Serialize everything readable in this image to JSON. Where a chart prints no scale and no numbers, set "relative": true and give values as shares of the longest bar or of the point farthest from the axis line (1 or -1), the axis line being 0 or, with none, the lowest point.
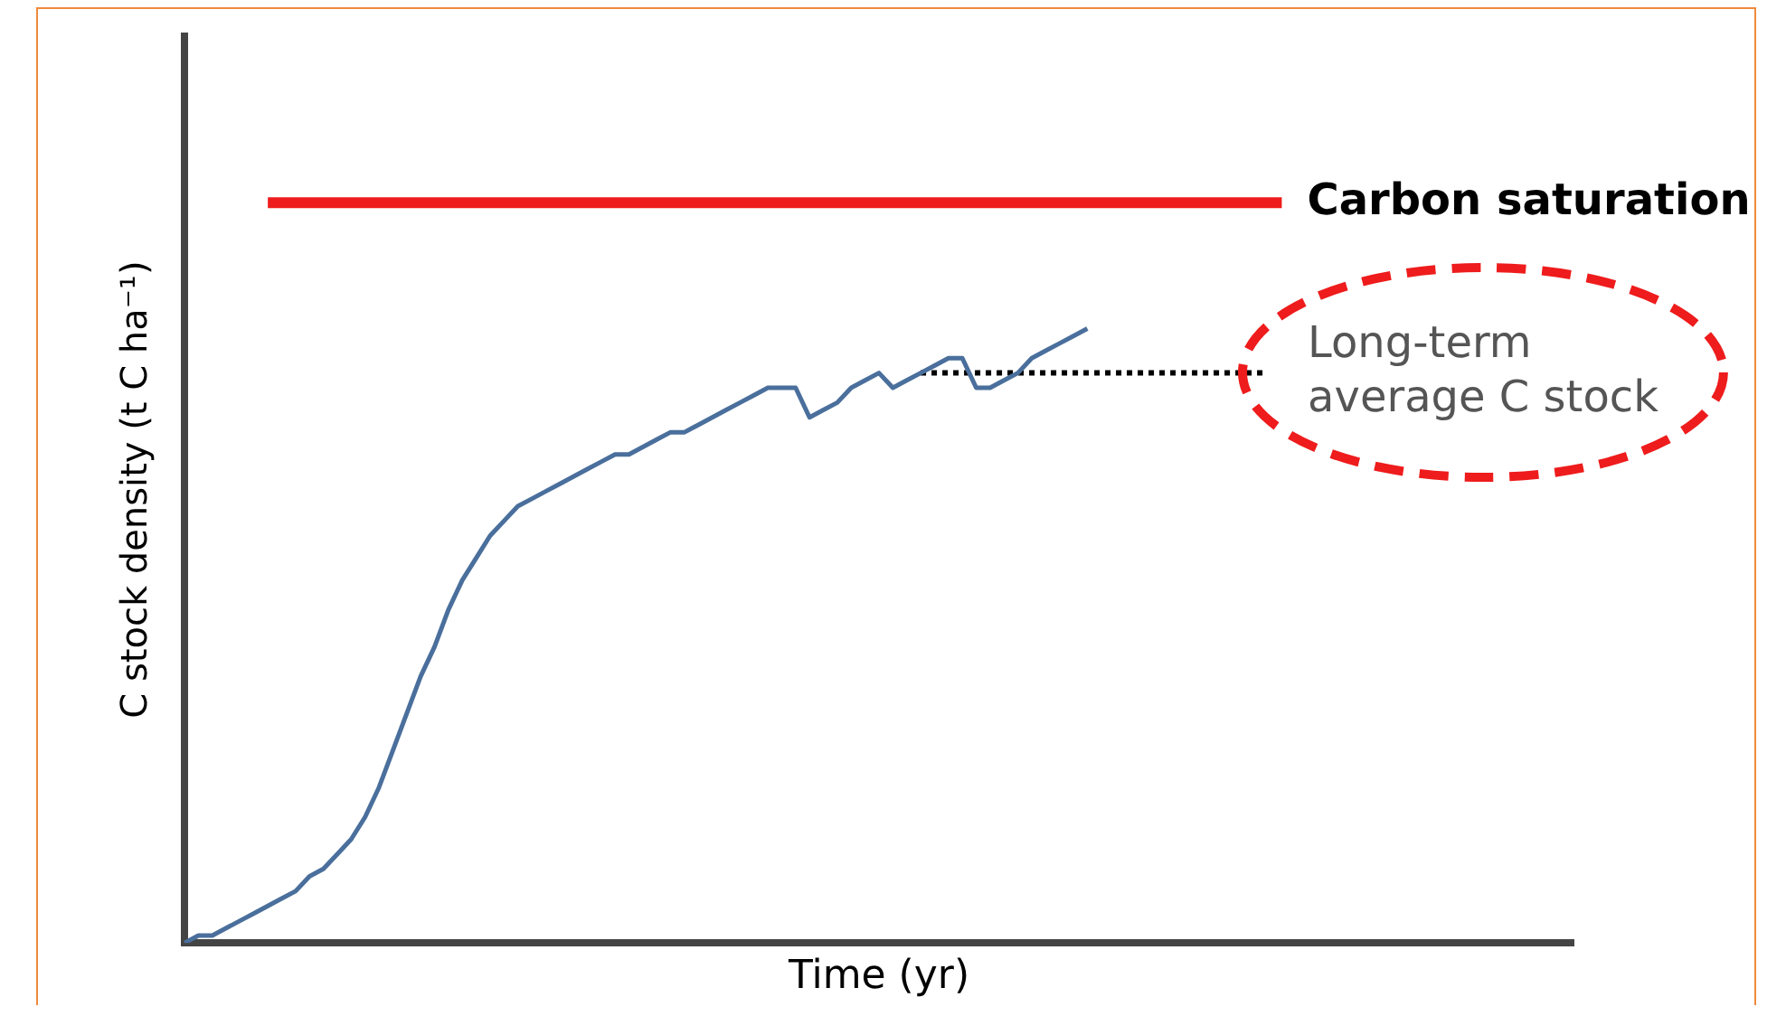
{
  "chart_data": {
    "type": "line",
    "xlabel": "Time (yr)",
    "ylabel": "C stock density (t C ha⁻¹)",
    "relative": true,
    "legend": false,
    "grid": false,
    "tick_labels": false,
    "marker": "none",
    "categories": [
      null,
      null,
      null,
      null,
      null,
      null,
      null,
      null,
      null,
      null,
      null,
      null,
      null,
      null,
      null,
      null,
      null,
      null,
      null,
      null,
      null,
      null,
      null,
      null,
      null,
      null,
      null,
      null,
      null,
      null,
      null,
      null,
      null,
      null,
      null,
      null,
      null,
      null,
      null,
      null,
      null,
      null,
      null,
      null,
      null,
      null,
      null,
      null,
      null,
      null,
      null,
      null,
      null,
      null,
      null,
      null,
      null,
      null,
      null,
      null,
      null,
      null,
      null,
      null,
      null,
      null,
      null,
      null,
      null,
      null,
      null,
      null,
      null,
      null,
      null,
      null,
      null,
      null,
      null,
      null,
      null,
      null,
      null,
      null,
      null,
      null,
      null,
      null,
      null,
      null,
      null,
      null,
      null,
      null,
      null,
      null,
      null,
      null,
      null,
      null,
      null
    ],
    "series": [
      {
        "color": "#4a6f9c",
        "line_style": "solid",
        "values": [
          0,
          0.01,
          0.01,
          0.02,
          0.03,
          0.04,
          0.05,
          0.06,
          0.07,
          0.09,
          0.1,
          0.12,
          0.14,
          0.17,
          0.21,
          0.26,
          0.31,
          0.36,
          0.4,
          0.45,
          0.49,
          0.52,
          0.55,
          0.57,
          0.59,
          0.6,
          0.61,
          0.62,
          0.63,
          0.64,
          0.65,
          0.66,
          0.66,
          0.67,
          0.68,
          0.69,
          0.69,
          0.7,
          0.71,
          0.72,
          0.73,
          0.74,
          0.75,
          0.75,
          0.75,
          0.71,
          0.72,
          0.73,
          0.75,
          0.76,
          0.77,
          0.75,
          0.76,
          0.77,
          0.78,
          0.79,
          0.79,
          0.75,
          0.75,
          0.76,
          0.77,
          0.79,
          0.8,
          0.81,
          0.82,
          0.83,
          null,
          null,
          null,
          null,
          null,
          null,
          null,
          null,
          null,
          null,
          null,
          null,
          null,
          null,
          null,
          null,
          null,
          null,
          null,
          null,
          null,
          null,
          null,
          null,
          null,
          null,
          null,
          null,
          null,
          null,
          null,
          null,
          null,
          null,
          null
        ]
      },
      {
        "name": "Carbon saturation",
        "color": "#ee1c1c",
        "line_style": "solid",
        "values": [
          null,
          null,
          null,
          null,
          null,
          null,
          1,
          1,
          1,
          1,
          1,
          1,
          1,
          1,
          1,
          1,
          1,
          1,
          1,
          1,
          1,
          1,
          1,
          1,
          1,
          1,
          1,
          1,
          1,
          1,
          1,
          1,
          1,
          1,
          1,
          1,
          1,
          1,
          1,
          1,
          1,
          1,
          1,
          1,
          1,
          1,
          1,
          1,
          1,
          1,
          1,
          1,
          1,
          1,
          1,
          1,
          1,
          1,
          1,
          1,
          1,
          1,
          1,
          1,
          1,
          1,
          1,
          1,
          1,
          1,
          1,
          1,
          1,
          1,
          1,
          1,
          1,
          1,
          1,
          1,
          null,
          null,
          null,
          null,
          null,
          null,
          null,
          null,
          null,
          null,
          null,
          null,
          null,
          null,
          null,
          null,
          null,
          null,
          null,
          null,
          null
        ]
      },
      {
        "name": "Long-term average C stock",
        "color": "#000000",
        "line_style": "dotted",
        "values": [
          null,
          null,
          null,
          null,
          null,
          null,
          null,
          null,
          null,
          null,
          null,
          null,
          null,
          null,
          null,
          null,
          null,
          null,
          null,
          null,
          null,
          null,
          null,
          null,
          null,
          null,
          null,
          null,
          null,
          null,
          null,
          null,
          null,
          null,
          null,
          null,
          null,
          null,
          null,
          null,
          null,
          null,
          null,
          null,
          null,
          null,
          null,
          null,
          null,
          null,
          null,
          null,
          null,
          0.77,
          0.77,
          0.77,
          0.77,
          0.77,
          0.77,
          0.77,
          0.77,
          0.77,
          0.77,
          0.77,
          0.77,
          0.77,
          0.77,
          0.77,
          0.77,
          0.77,
          0.77,
          0.77,
          0.77,
          0.77,
          0.77,
          0.77,
          0.77,
          0.77,
          0.77,
          null,
          null,
          null,
          null,
          null,
          null,
          null,
          null,
          null,
          null,
          null,
          null,
          null,
          null,
          null,
          null,
          null,
          null,
          null,
          null,
          null,
          null
        ]
      }
    ]
  }
}
